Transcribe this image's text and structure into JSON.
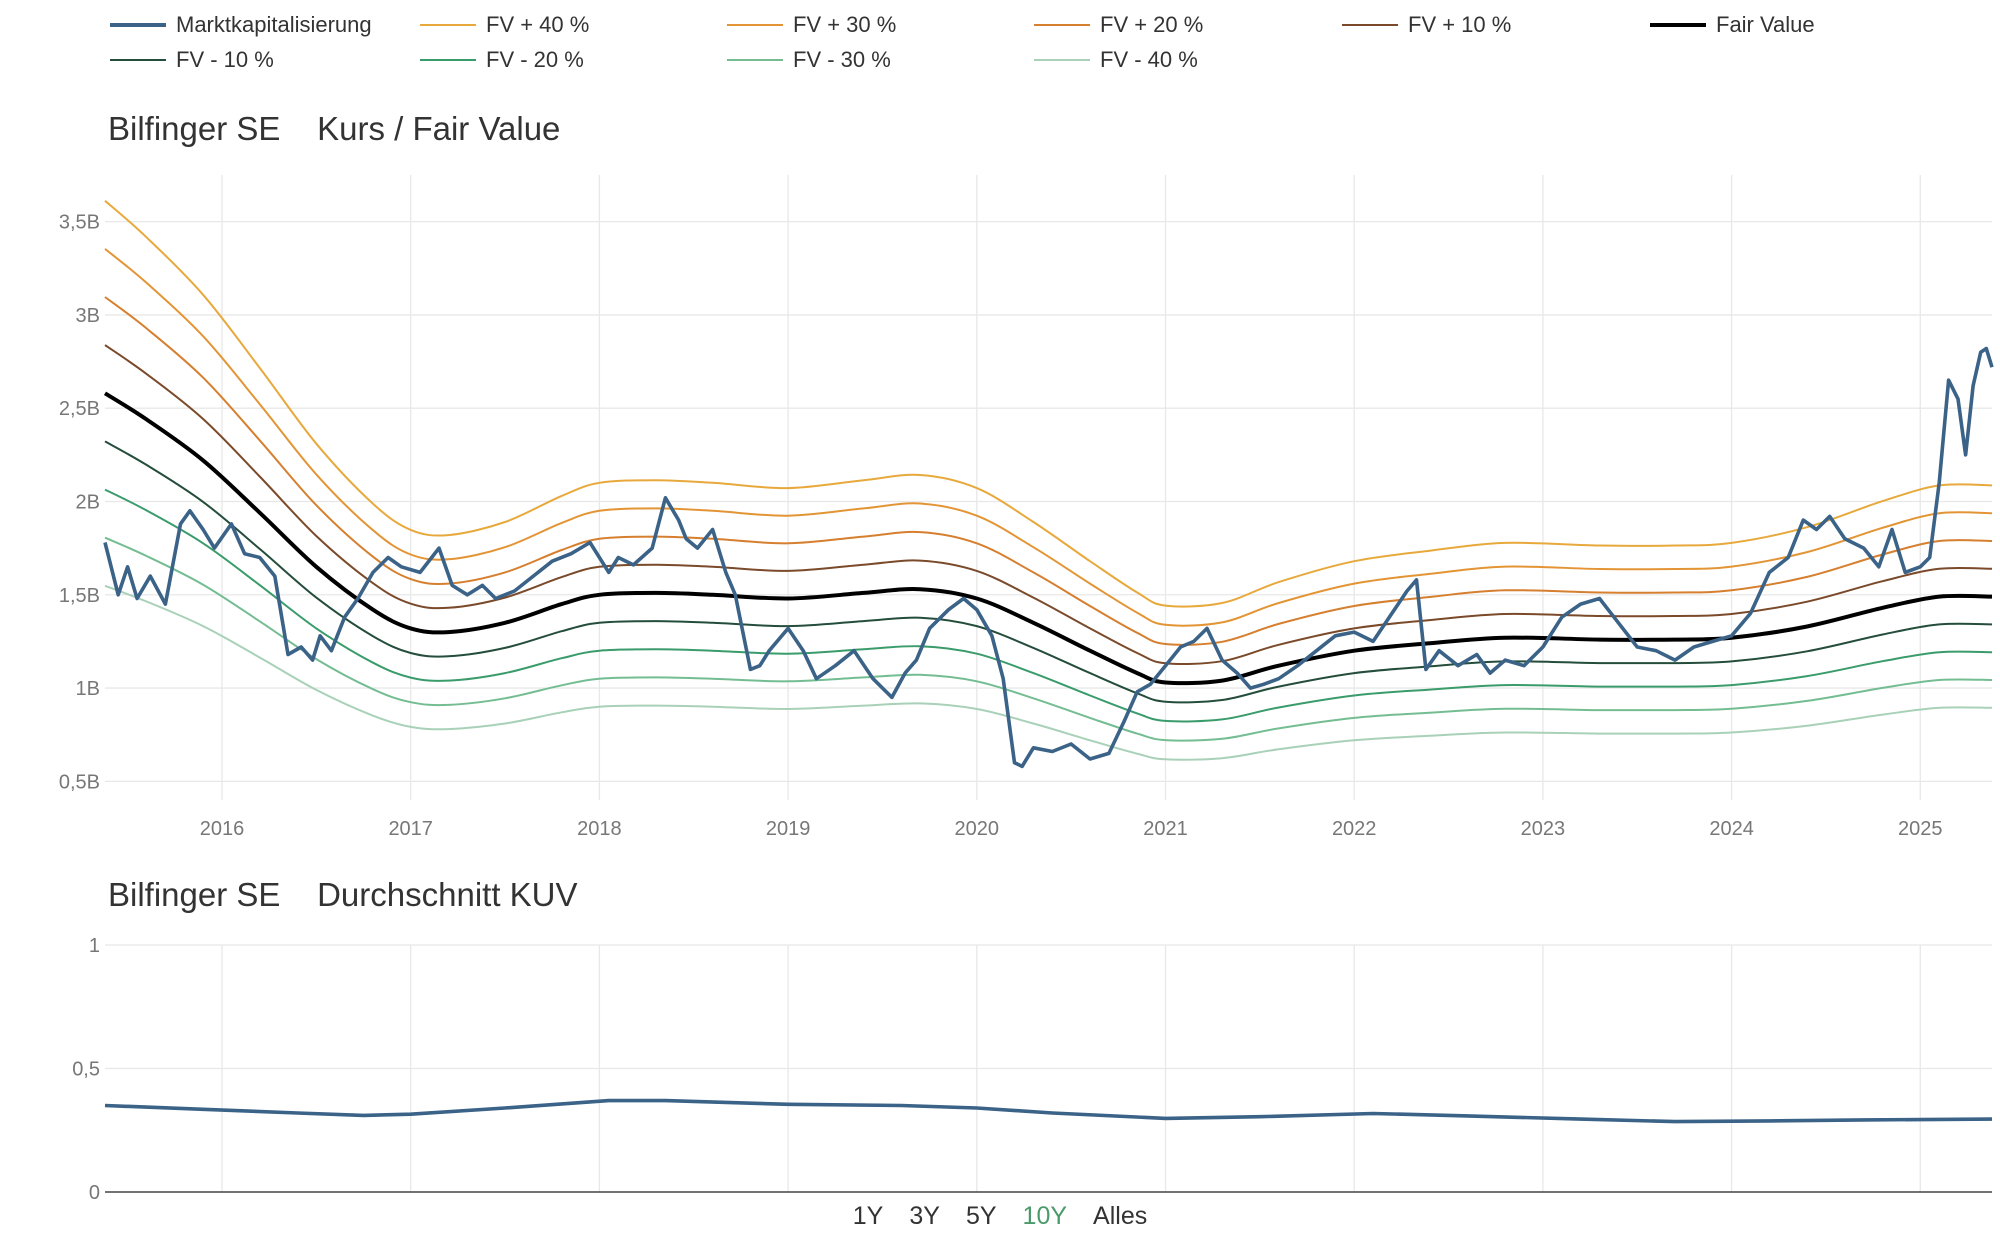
{
  "legend": [
    {
      "label": "Marktkapitalisierung",
      "color": "#3b6287"
    },
    {
      "label": "FV + 40 %",
      "color": "#e8a93c"
    },
    {
      "label": "FV + 30 %",
      "color": "#e39535"
    },
    {
      "label": "FV + 20 %",
      "color": "#d57f2f"
    },
    {
      "label": "FV + 10 %",
      "color": "#7a4a2a"
    },
    {
      "label": "Fair Value",
      "color": "#000000"
    },
    {
      "label": "FV - 10 %",
      "color": "#244d3b"
    },
    {
      "label": "FV - 20 %",
      "color": "#3a9b6b"
    },
    {
      "label": "FV - 30 %",
      "color": "#74bd92"
    },
    {
      "label": "FV - 40 %",
      "color": "#a8d1b8"
    }
  ],
  "chart_data": [
    {
      "type": "line",
      "title": "Bilfinger SE    Kurs / Fair Value",
      "xlabel": "",
      "ylabel": "",
      "x_ticks": [
        "2016",
        "2017",
        "2018",
        "2019",
        "2020",
        "2021",
        "2022",
        "2023",
        "2024",
        "2025"
      ],
      "y_ticks": [
        "0,5B",
        "1B",
        "1,5B",
        "2B",
        "2,5B",
        "3B",
        "3,5B"
      ],
      "ylim": [
        0.4,
        3.75
      ],
      "xlim": [
        2015.38,
        2025.38
      ],
      "grid": true,
      "legend_position": "top",
      "fair_value": {
        "name": "Fair Value",
        "x": [
          2015.38,
          2015.6,
          2015.9,
          2016.2,
          2016.5,
          2016.8,
          2017.0,
          2017.2,
          2017.5,
          2017.8,
          2018.0,
          2018.3,
          2018.6,
          2019.0,
          2019.4,
          2019.7,
          2020.0,
          2020.3,
          2020.6,
          2020.85,
          2021.0,
          2021.3,
          2021.6,
          2022.0,
          2022.4,
          2022.8,
          2023.3,
          2023.7,
          2024.0,
          2024.4,
          2024.8,
          2025.1,
          2025.38
        ],
        "values": [
          2.58,
          2.44,
          2.22,
          1.94,
          1.65,
          1.42,
          1.32,
          1.3,
          1.35,
          1.45,
          1.5,
          1.51,
          1.5,
          1.48,
          1.51,
          1.53,
          1.48,
          1.35,
          1.2,
          1.08,
          1.03,
          1.04,
          1.12,
          1.2,
          1.24,
          1.27,
          1.26,
          1.26,
          1.27,
          1.33,
          1.43,
          1.49,
          1.49
        ]
      },
      "band_factors": [
        {
          "name": "FV + 40 %",
          "factor": 1.4
        },
        {
          "name": "FV + 30 %",
          "factor": 1.3
        },
        {
          "name": "FV + 20 %",
          "factor": 1.2
        },
        {
          "name": "FV + 10 %",
          "factor": 1.1
        },
        {
          "name": "FV - 10 %",
          "factor": 0.9
        },
        {
          "name": "FV - 20 %",
          "factor": 0.8
        },
        {
          "name": "FV - 30 %",
          "factor": 0.7
        },
        {
          "name": "FV - 40 %",
          "factor": 0.6
        }
      ],
      "market_cap": {
        "name": "Marktkapitalisierung",
        "x": [
          2015.38,
          2015.45,
          2015.5,
          2015.55,
          2015.62,
          2015.7,
          2015.78,
          2015.83,
          2015.9,
          2015.96,
          2016.05,
          2016.12,
          2016.2,
          2016.28,
          2016.35,
          2016.42,
          2016.48,
          2016.52,
          2016.58,
          2016.65,
          2016.72,
          2016.8,
          2016.88,
          2016.95,
          2017.05,
          2017.15,
          2017.22,
          2017.3,
          2017.38,
          2017.45,
          2017.55,
          2017.65,
          2017.75,
          2017.85,
          2017.95,
          2018.05,
          2018.1,
          2018.18,
          2018.28,
          2018.35,
          2018.42,
          2018.46,
          2018.52,
          2018.6,
          2018.67,
          2018.72,
          2018.8,
          2018.85,
          2018.9,
          2019.0,
          2019.08,
          2019.15,
          2019.25,
          2019.35,
          2019.45,
          2019.55,
          2019.62,
          2019.68,
          2019.75,
          2019.85,
          2019.93,
          2020.0,
          2020.08,
          2020.14,
          2020.2,
          2020.24,
          2020.3,
          2020.4,
          2020.5,
          2020.6,
          2020.7,
          2020.78,
          2020.85,
          2020.92,
          2021.0,
          2021.08,
          2021.15,
          2021.22,
          2021.3,
          2021.38,
          2021.45,
          2021.52,
          2021.6,
          2021.7,
          2021.8,
          2021.9,
          2022.0,
          2022.1,
          2022.2,
          2022.28,
          2022.33,
          2022.38,
          2022.45,
          2022.55,
          2022.65,
          2022.72,
          2022.8,
          2022.9,
          2023.0,
          2023.1,
          2023.2,
          2023.3,
          2023.4,
          2023.5,
          2023.6,
          2023.7,
          2023.8,
          2023.9,
          2024.0,
          2024.1,
          2024.2,
          2024.3,
          2024.38,
          2024.45,
          2024.52,
          2024.6,
          2024.7,
          2024.78,
          2024.85,
          2024.92,
          2025.0,
          2025.05,
          2025.1,
          2025.15,
          2025.2,
          2025.24,
          2025.28,
          2025.32,
          2025.35,
          2025.38
        ],
        "values": [
          1.78,
          1.5,
          1.65,
          1.48,
          1.6,
          1.45,
          1.88,
          1.95,
          1.85,
          1.75,
          1.88,
          1.72,
          1.7,
          1.6,
          1.18,
          1.22,
          1.15,
          1.28,
          1.2,
          1.38,
          1.48,
          1.62,
          1.7,
          1.65,
          1.62,
          1.75,
          1.55,
          1.5,
          1.55,
          1.48,
          1.52,
          1.6,
          1.68,
          1.72,
          1.78,
          1.62,
          1.7,
          1.66,
          1.75,
          2.02,
          1.9,
          1.8,
          1.75,
          1.85,
          1.62,
          1.5,
          1.1,
          1.12,
          1.2,
          1.32,
          1.2,
          1.05,
          1.12,
          1.2,
          1.05,
          0.95,
          1.08,
          1.15,
          1.32,
          1.42,
          1.48,
          1.42,
          1.28,
          1.05,
          0.6,
          0.58,
          0.68,
          0.66,
          0.7,
          0.62,
          0.65,
          0.82,
          0.98,
          1.02,
          1.12,
          1.22,
          1.25,
          1.32,
          1.15,
          1.08,
          1.0,
          1.02,
          1.05,
          1.12,
          1.2,
          1.28,
          1.3,
          1.25,
          1.4,
          1.52,
          1.58,
          1.1,
          1.2,
          1.12,
          1.18,
          1.08,
          1.15,
          1.12,
          1.22,
          1.38,
          1.45,
          1.48,
          1.35,
          1.22,
          1.2,
          1.15,
          1.22,
          1.25,
          1.28,
          1.4,
          1.62,
          1.7,
          1.9,
          1.85,
          1.92,
          1.8,
          1.75,
          1.65,
          1.85,
          1.62,
          1.65,
          1.7,
          2.1,
          2.65,
          2.55,
          2.25,
          2.62,
          2.8,
          2.82,
          2.72
        ]
      }
    },
    {
      "type": "line",
      "title": "Bilfinger SE    Durchschnitt KUV",
      "xlabel": "",
      "ylabel": "",
      "y_ticks": [
        "0",
        "0,5",
        "1"
      ],
      "ylim": [
        0,
        1
      ],
      "xlim": [
        2015.38,
        2025.38
      ],
      "grid": true,
      "series": [
        {
          "name": "",
          "x": [
            2015.38,
            2015.9,
            2016.4,
            2016.75,
            2017.0,
            2017.5,
            2018.05,
            2018.35,
            2019.0,
            2019.6,
            2020.0,
            2020.4,
            2021.0,
            2021.5,
            2022.1,
            2022.6,
            2023.2,
            2023.7,
            2024.2,
            2024.7,
            2025.38
          ],
          "values": [
            0.35,
            0.335,
            0.32,
            0.31,
            0.315,
            0.34,
            0.37,
            0.37,
            0.355,
            0.35,
            0.34,
            0.32,
            0.298,
            0.305,
            0.318,
            0.308,
            0.295,
            0.285,
            0.288,
            0.292,
            0.295
          ]
        }
      ]
    }
  ],
  "range_selector": {
    "buttons": [
      "1Y",
      "3Y",
      "5Y",
      "10Y",
      "Alles"
    ],
    "active": "10Y"
  }
}
